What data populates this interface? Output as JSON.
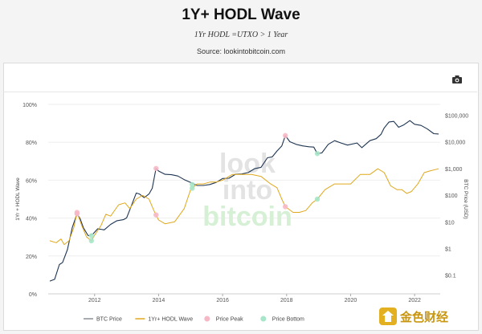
{
  "header": {
    "title": "1Y+ HODL Wave",
    "subtitle": "1Yr HODL =UTXO > 1 Year",
    "source": "Source: lookintobitcoin.com"
  },
  "toolbar": {
    "camera_icon": "camera-icon"
  },
  "watermark": {
    "lines": [
      "look",
      "into",
      "bitcoin"
    ]
  },
  "footer_logo": {
    "text": "金色财经"
  },
  "colors": {
    "btc_price": "#1f3552",
    "hodl_wave": "#e0a81c",
    "price_peak": "#f7b8c6",
    "price_bottom": "#a7e6c8",
    "watermark_gray": "#e3e3e3",
    "watermark_green": "#d5f0d4"
  },
  "chart_data": {
    "type": "line",
    "title": "1Y+ HODL Wave",
    "subtitle": "1Yr HODL =UTXO > 1 Year",
    "xlabel": "",
    "ylabel_left": "1Yr + HODL Wave",
    "ylabel_right": "BTC Price (USD)",
    "xlim": [
      2010.55,
      2022.8
    ],
    "ylim_left": [
      0,
      100
    ],
    "ylim_right_log10": [
      -1.7,
      5.4
    ],
    "x_ticks": [
      {
        "value": 2012,
        "label": "2012"
      },
      {
        "value": 2014,
        "label": "2014"
      },
      {
        "value": 2016,
        "label": "2016"
      },
      {
        "value": 2018,
        "label": "2018"
      },
      {
        "value": 2020,
        "label": "2020"
      },
      {
        "value": 2022,
        "label": "2022"
      }
    ],
    "left_ticks": [
      {
        "value": 0,
        "label": "0%"
      },
      {
        "value": 20,
        "label": "20%"
      },
      {
        "value": 40,
        "label": "40%"
      },
      {
        "value": 60,
        "label": "60%"
      },
      {
        "value": 80,
        "label": "80%"
      },
      {
        "value": 100,
        "label": "100%"
      }
    ],
    "right_ticks": [
      {
        "value": 0.1,
        "label": "$0.1"
      },
      {
        "value": 1,
        "label": "$1"
      },
      {
        "value": 10,
        "label": "$10"
      },
      {
        "value": 100,
        "label": "$100"
      },
      {
        "value": 1000,
        "label": "$1,000"
      },
      {
        "value": 10000,
        "label": "$10,000"
      },
      {
        "value": 100000,
        "label": "$100,000"
      }
    ],
    "legend": [
      {
        "name": "BTC Price",
        "kind": "line",
        "color": "#8a8f96"
      },
      {
        "name": "1Yr+ HODL Wave",
        "kind": "line",
        "color": "#e0a81c"
      },
      {
        "name": "Price Peak",
        "kind": "dot",
        "color": "#f7b8c6"
      },
      {
        "name": "Price Bottom",
        "kind": "dot",
        "color": "#a7e6c8"
      }
    ],
    "series": [
      {
        "name": "BTC Price",
        "axis": "right_log",
        "x": [
          2010.6,
          2010.75,
          2010.9,
          2011.0,
          2011.15,
          2011.3,
          2011.45,
          2011.55,
          2011.65,
          2011.8,
          2011.95,
          2012.1,
          2012.3,
          2012.5,
          2012.7,
          2012.9,
          2013.0,
          2013.15,
          2013.3,
          2013.4,
          2013.55,
          2013.7,
          2013.8,
          2013.92,
          2014.0,
          2014.2,
          2014.4,
          2014.6,
          2014.8,
          2015.0,
          2015.2,
          2015.4,
          2015.6,
          2015.8,
          2016.0,
          2016.2,
          2016.4,
          2016.6,
          2016.8,
          2017.0,
          2017.2,
          2017.4,
          2017.55,
          2017.7,
          2017.85,
          2017.96,
          2018.1,
          2018.3,
          2018.5,
          2018.7,
          2018.85,
          2018.96,
          2019.1,
          2019.3,
          2019.5,
          2019.7,
          2019.9,
          2020.2,
          2020.35,
          2020.6,
          2020.8,
          2020.95,
          2021.05,
          2021.2,
          2021.35,
          2021.5,
          2021.65,
          2021.85,
          2022.0,
          2022.2,
          2022.4,
          2022.6,
          2022.75
        ],
        "values": [
          0.06,
          0.07,
          0.25,
          0.3,
          0.9,
          6,
          20,
          13,
          6,
          3,
          3.5,
          5.5,
          5,
          8,
          11,
          12,
          14,
          40,
          120,
          110,
          80,
          110,
          180,
          1000,
          800,
          600,
          580,
          520,
          380,
          300,
          230,
          230,
          250,
          300,
          420,
          430,
          600,
          620,
          700,
          980,
          1100,
          2500,
          2700,
          4500,
          7000,
          17000,
          10000,
          8000,
          7000,
          6500,
          6300,
          3600,
          3800,
          8000,
          11000,
          9000,
          7500,
          9000,
          6000,
          11000,
          13000,
          19000,
          33000,
          55000,
          58000,
          35000,
          42000,
          62000,
          45000,
          41000,
          30000,
          20000,
          19500
        ]
      },
      {
        "name": "1Yr+ HODL Wave",
        "axis": "left",
        "x": [
          2010.6,
          2010.8,
          2010.95,
          2011.05,
          2011.2,
          2011.35,
          2011.45,
          2011.6,
          2011.75,
          2011.9,
          2012.0,
          2012.2,
          2012.35,
          2012.5,
          2012.75,
          2012.95,
          2013.1,
          2013.3,
          2013.5,
          2013.7,
          2013.85,
          2014.0,
          2014.2,
          2014.5,
          2014.8,
          2015.0,
          2015.2,
          2015.4,
          2015.6,
          2015.8,
          2016.0,
          2016.3,
          2016.6,
          2016.9,
          2017.2,
          2017.5,
          2017.7,
          2017.85,
          2017.96,
          2018.2,
          2018.4,
          2018.6,
          2018.8,
          2018.96,
          2019.2,
          2019.5,
          2019.8,
          2020.0,
          2020.3,
          2020.6,
          2020.85,
          2021.05,
          2021.25,
          2021.45,
          2021.6,
          2021.75,
          2021.9,
          2022.1,
          2022.3,
          2022.5,
          2022.75
        ],
        "values": [
          28,
          27,
          29,
          26,
          28,
          35,
          43,
          36,
          30,
          28,
          31,
          36,
          42,
          41,
          47,
          48,
          45,
          50,
          52,
          50,
          44,
          39,
          37,
          38,
          45,
          55,
          58,
          58,
          59,
          59,
          60,
          63,
          63,
          63,
          62,
          58,
          56,
          50,
          46,
          43,
          43,
          44,
          48,
          50,
          55,
          58,
          58,
          58,
          63,
          63,
          66,
          64,
          57,
          55,
          55,
          53,
          54,
          58,
          64,
          65,
          66
        ]
      }
    ],
    "peaks": [
      {
        "x": 2011.45,
        "price": 20
      },
      {
        "x": 2013.92,
        "price": 1000
      },
      {
        "x": 2017.96,
        "price": 17000
      }
    ],
    "bottoms": [
      {
        "x": 2011.9,
        "price": 3
      },
      {
        "x": 2015.05,
        "price": 250
      },
      {
        "x": 2018.96,
        "price": 3600
      }
    ]
  }
}
